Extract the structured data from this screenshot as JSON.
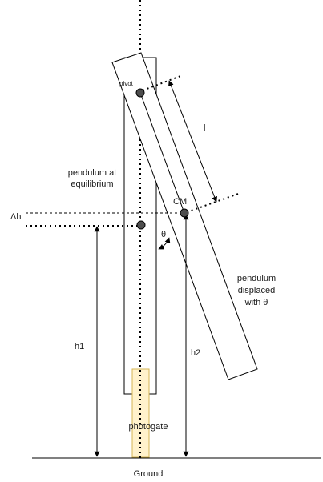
{
  "diagram": {
    "labels": {
      "pivot": "pivot",
      "cm": "CM",
      "l": "l",
      "equilibrium_line1": "pendulum at",
      "equilibrium_line2": "equilibrium",
      "delta_h": "Δh",
      "theta": "θ",
      "displaced_line1": "pendulum",
      "displaced_line2": "displaced",
      "displaced_line3": "with θ",
      "h1": "h1",
      "h2": "h2",
      "photogate": "photogate",
      "ground": "Ground"
    },
    "colors": {
      "stroke": "#000000",
      "dot_fill": "#4d4d4d",
      "photogate_fill": "#fff2cc",
      "photogate_stroke": "#d6b656"
    }
  }
}
